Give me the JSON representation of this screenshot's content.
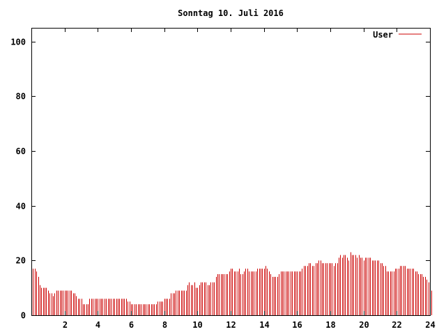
{
  "chart_data": {
    "type": "bar",
    "title": "Sonntag 10. Juli 2016",
    "xlabel": "",
    "ylabel": "",
    "xlim": [
      0,
      24
    ],
    "ylim": [
      0,
      105
    ],
    "x_ticks": [
      2,
      4,
      6,
      8,
      10,
      12,
      14,
      16,
      18,
      20,
      22,
      24
    ],
    "y_ticks": [
      0,
      20,
      40,
      60,
      80,
      100
    ],
    "grid": false,
    "legend_position": "top-right",
    "series": [
      {
        "name": "User",
        "color": "#cc0000",
        "x_start": 0,
        "x_step": 0.1,
        "values": [
          18,
          17,
          17,
          16,
          14,
          11,
          10,
          10,
          10,
          10,
          9,
          8,
          8,
          7,
          8,
          9,
          9,
          9,
          9,
          9,
          9,
          9,
          9,
          9,
          9,
          8,
          8,
          7,
          6,
          6,
          6,
          4,
          4,
          4,
          4,
          6,
          6,
          6,
          6,
          6,
          6,
          6,
          6,
          6,
          6,
          6,
          6,
          6,
          6,
          6,
          6,
          6,
          6,
          6,
          6,
          6,
          6,
          6,
          5,
          5,
          4,
          4,
          4,
          4,
          4,
          4,
          4,
          4,
          4,
          4,
          4,
          4,
          4,
          4,
          4,
          4,
          5,
          5,
          5,
          5,
          6,
          6,
          6,
          6,
          8,
          8,
          8,
          9,
          9,
          9,
          9,
          9,
          9,
          9,
          11,
          12,
          11,
          11,
          12,
          10,
          10,
          11,
          12,
          12,
          12,
          12,
          11,
          11,
          12,
          12,
          12,
          14,
          15,
          15,
          15,
          15,
          15,
          15,
          15,
          16,
          17,
          17,
          16,
          16,
          16,
          17,
          15,
          15,
          16,
          17,
          17,
          16,
          16,
          16,
          16,
          16,
          17,
          17,
          17,
          17,
          17,
          18,
          17,
          16,
          15,
          14,
          14,
          14,
          14,
          15,
          16,
          16,
          16,
          16,
          16,
          16,
          16,
          16,
          16,
          16,
          16,
          16,
          16,
          17,
          18,
          18,
          18,
          19,
          19,
          18,
          18,
          19,
          19,
          20,
          20,
          19,
          19,
          19,
          19,
          19,
          19,
          19,
          18,
          19,
          19,
          21,
          22,
          21,
          22,
          22,
          21,
          20,
          23,
          22,
          22,
          22,
          21,
          22,
          21,
          21,
          20,
          21,
          21,
          21,
          21,
          20,
          20,
          20,
          20,
          20,
          19,
          19,
          18,
          18,
          16,
          16,
          16,
          16,
          16,
          17,
          17,
          17,
          18,
          18,
          18,
          18,
          17,
          17,
          17,
          17,
          17,
          16,
          16,
          15,
          15,
          15,
          14,
          14,
          13,
          12,
          11,
          9
        ]
      }
    ]
  }
}
